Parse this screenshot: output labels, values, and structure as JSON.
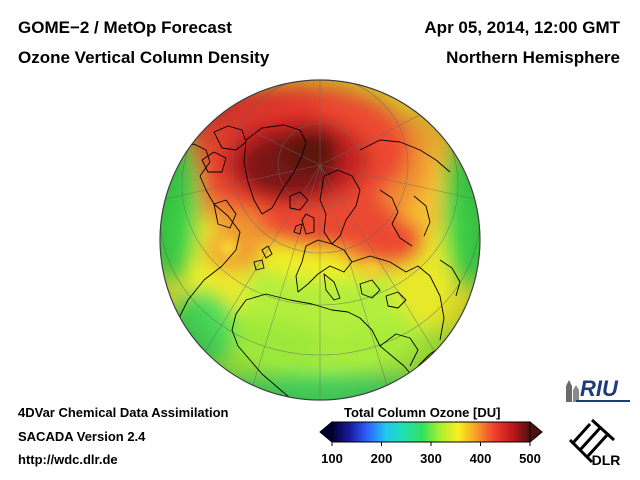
{
  "header": {
    "title_left_1": "GOME−2 / MetOp Forecast",
    "title_left_2": "Ozone Vertical Column Density",
    "title_right_1": "Apr 05, 2014, 12:00 GMT",
    "title_right_2": "Northern Hemisphere"
  },
  "footer": {
    "line1": "4DVar Chemical Data Assimilation",
    "line2": "SACADA Version 2.4",
    "line3": "http://wdc.dlr.de"
  },
  "colorbar": {
    "title": "Total Column Ozone [DU]",
    "ticks": [
      "100",
      "200",
      "300",
      "400",
      "500"
    ],
    "min": 100,
    "max": 500,
    "colors": [
      "#000030",
      "#1a1aa0",
      "#2e64ff",
      "#22c8f0",
      "#20e0b0",
      "#30e060",
      "#a8f030",
      "#f8f020",
      "#f8a028",
      "#f04030",
      "#c01818",
      "#501010"
    ]
  },
  "logos": {
    "riu": "RIU",
    "dlr": "DLR"
  },
  "map": {
    "projection": "orthographic",
    "hemisphere": "Northern Hemisphere"
  }
}
